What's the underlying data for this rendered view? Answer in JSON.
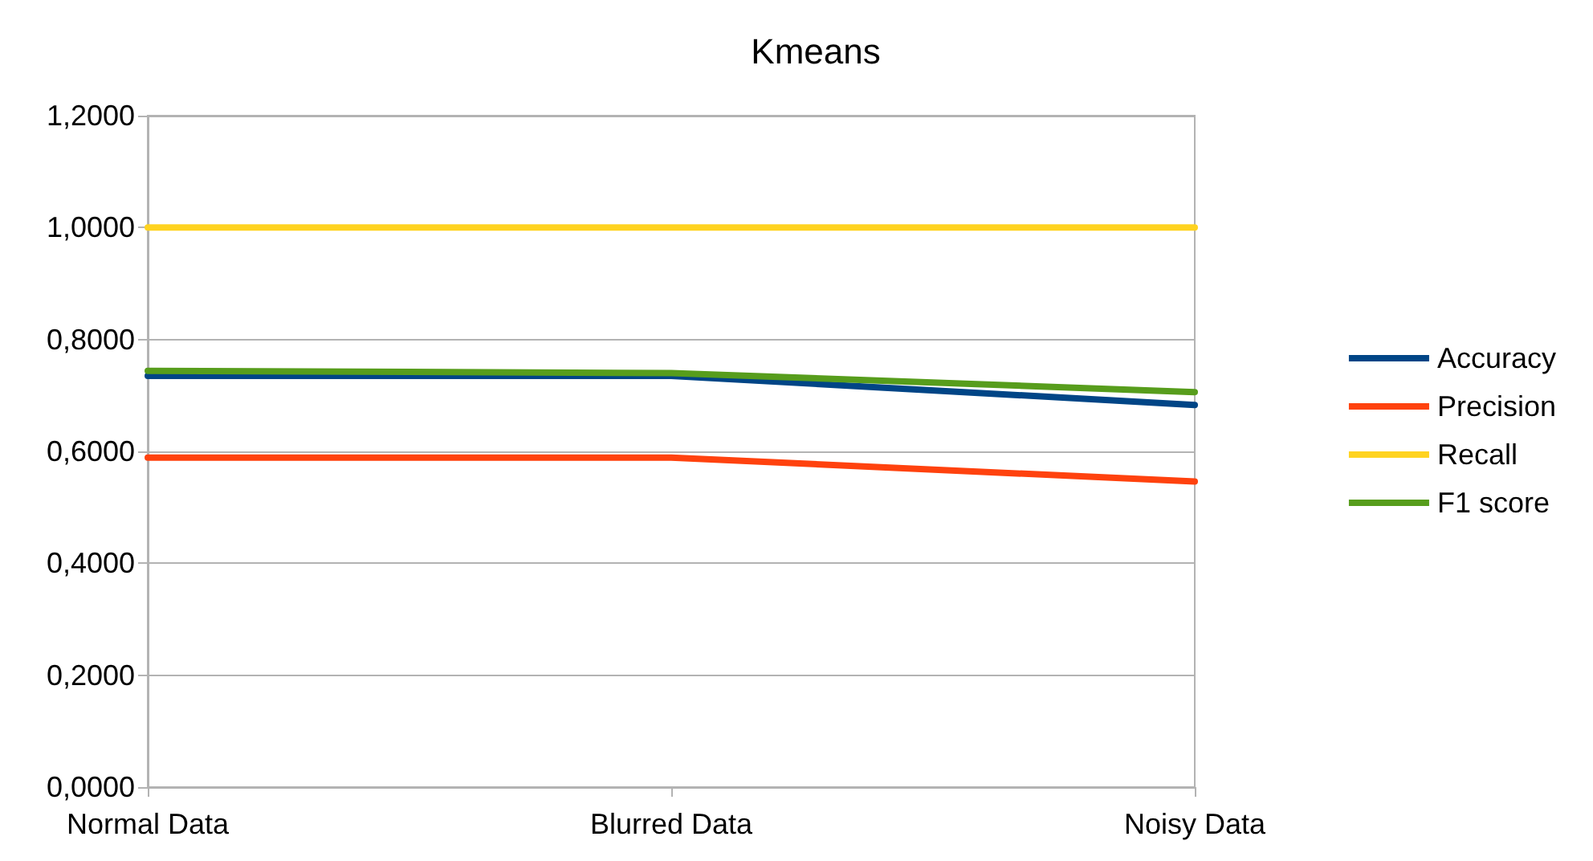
{
  "chart_data": {
    "type": "line",
    "title": "Kmeans",
    "categories": [
      "Normal Data",
      "Blurred Data",
      "Noisy Data"
    ],
    "series": [
      {
        "name": "Accuracy",
        "color": "#004586",
        "values": [
          0.735,
          0.735,
          0.683
        ]
      },
      {
        "name": "Precision",
        "color": "#ff420e",
        "values": [
          0.589,
          0.589,
          0.546
        ]
      },
      {
        "name": "Recall",
        "color": "#ffd320",
        "values": [
          1.0,
          1.0,
          1.0
        ]
      },
      {
        "name": "F1 score",
        "color": "#579d1c",
        "values": [
          0.744,
          0.74,
          0.706
        ]
      }
    ],
    "ylim": [
      0,
      1.2
    ],
    "yticks": [
      {
        "value": 0,
        "label": "0,0000"
      },
      {
        "value": 0.2,
        "label": "0,2000"
      },
      {
        "value": 0.4,
        "label": "0,4000"
      },
      {
        "value": 0.6,
        "label": "0,6000"
      },
      {
        "value": 0.8,
        "label": "0,8000"
      },
      {
        "value": 1.0,
        "label": "1,0000"
      },
      {
        "value": 1.2,
        "label": "1,2000"
      }
    ],
    "grid": "y",
    "legend": "right",
    "marker": "none",
    "line_style": "solid"
  }
}
